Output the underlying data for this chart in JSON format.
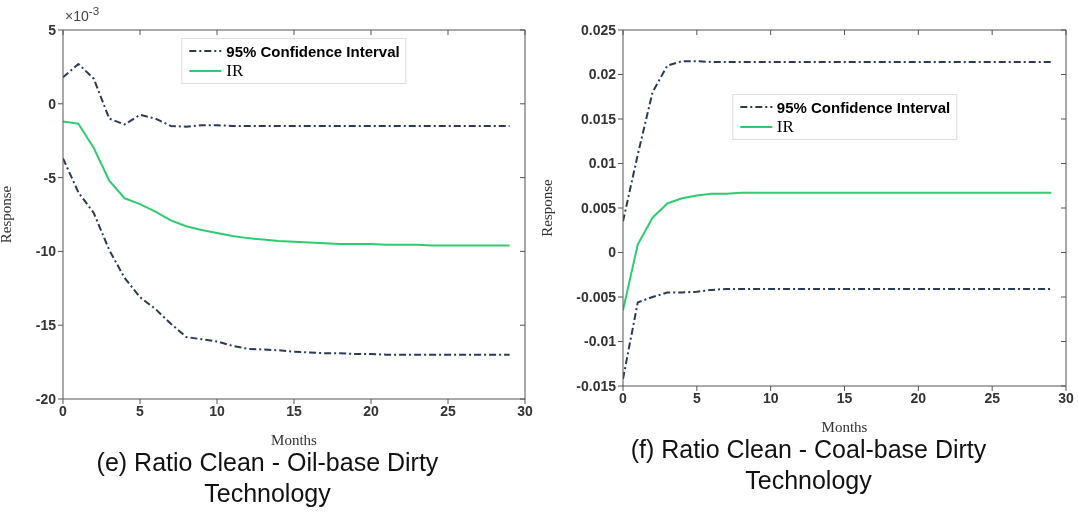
{
  "chart_data": [
    {
      "type": "line",
      "title": "(e) Ratio Clean - Oil-base Dirty Technology",
      "xlabel": "Months",
      "ylabel": "Response",
      "annotations": [
        "×10$^{-3}$"
      ],
      "x": [
        0,
        1,
        2,
        3,
        4,
        5,
        6,
        7,
        8,
        9,
        10,
        11,
        12,
        13,
        14,
        15,
        16,
        17,
        18,
        19,
        20,
        21,
        22,
        23,
        24,
        25,
        26,
        27,
        28,
        29
      ],
      "xlim": [
        0,
        30
      ],
      "xticks": [
        0,
        5,
        10,
        15,
        20,
        25,
        30
      ],
      "ylim": [
        -20,
        5
      ],
      "yticks": [
        -20,
        -15,
        -10,
        -5,
        0,
        5
      ],
      "grid": false,
      "legend": "top",
      "marker": "none",
      "series": [
        {
          "name": "95% Confidence Interval",
          "color": "#2b3a55",
          "line_style": "dashed",
          "values": [
            1.8,
            2.7,
            1.7,
            -1.0,
            -1.4,
            -0.75,
            -1.0,
            -1.5,
            -1.55,
            -1.45,
            -1.45,
            -1.5,
            -1.5,
            -1.5,
            -1.5,
            -1.5,
            -1.5,
            -1.5,
            -1.5,
            -1.5,
            -1.5,
            -1.5,
            -1.5,
            -1.5,
            -1.5,
            -1.5,
            -1.5,
            -1.5,
            -1.5,
            -1.5
          ]
        },
        {
          "name": "IR",
          "color": "#2ecc71",
          "line_style": "solid",
          "values": [
            -1.2,
            -1.35,
            -3.0,
            -5.2,
            -6.4,
            -6.8,
            -7.3,
            -7.9,
            -8.3,
            -8.55,
            -8.75,
            -8.95,
            -9.1,
            -9.2,
            -9.3,
            -9.35,
            -9.4,
            -9.45,
            -9.5,
            -9.5,
            -9.5,
            -9.55,
            -9.55,
            -9.55,
            -9.6,
            -9.6,
            -9.6,
            -9.6,
            -9.6,
            -9.6
          ]
        },
        {
          "color": "#2b3a55",
          "line_style": "dashed",
          "values": [
            -3.7,
            -6.0,
            -7.4,
            -9.9,
            -11.8,
            -13.1,
            -13.9,
            -14.9,
            -15.8,
            -15.95,
            -16.1,
            -16.4,
            -16.6,
            -16.65,
            -16.7,
            -16.8,
            -16.85,
            -16.9,
            -16.9,
            -16.95,
            -16.95,
            -17.0,
            -17.0,
            -17.0,
            -17.0,
            -17.0,
            -17.0,
            -17.0,
            -17.0,
            -17.0
          ]
        }
      ]
    },
    {
      "type": "line",
      "title": "(f) Ratio Clean - Coal-base Dirty Technology",
      "xlabel": "Months",
      "ylabel": "Response",
      "x": [
        0,
        1,
        2,
        3,
        4,
        5,
        6,
        7,
        8,
        9,
        10,
        11,
        12,
        13,
        14,
        15,
        16,
        17,
        18,
        19,
        20,
        21,
        22,
        23,
        24,
        25,
        26,
        27,
        28,
        29
      ],
      "xlim": [
        0,
        30
      ],
      "xticks": [
        0,
        5,
        10,
        15,
        20,
        25,
        30
      ],
      "ylim": [
        -0.015,
        0.025
      ],
      "yticks": [
        -0.015,
        -0.01,
        -0.005,
        0,
        0.005,
        0.01,
        0.015,
        0.02,
        0.025
      ],
      "grid": false,
      "legend": "center",
      "marker": "none",
      "series": [
        {
          "name": "95% Confidence Interval",
          "color": "#2b3a55",
          "line_style": "dashed",
          "values": [
            0.0035,
            0.011,
            0.018,
            0.021,
            0.0215,
            0.0215,
            0.0214,
            0.0214,
            0.0214,
            0.0214,
            0.0214,
            0.0214,
            0.0214,
            0.0214,
            0.0214,
            0.0214,
            0.0214,
            0.0214,
            0.0214,
            0.0214,
            0.0214,
            0.0214,
            0.0214,
            0.0214,
            0.0214,
            0.0214,
            0.0214,
            0.0214,
            0.0214,
            0.0214
          ]
        },
        {
          "name": "IR",
          "color": "#2ecc71",
          "line_style": "solid",
          "values": [
            -0.0065,
            0.0009,
            0.0039,
            0.0055,
            0.0061,
            0.0064,
            0.0066,
            0.0066,
            0.0067,
            0.0067,
            0.0067,
            0.0067,
            0.0067,
            0.0067,
            0.0067,
            0.0067,
            0.0067,
            0.0067,
            0.0067,
            0.0067,
            0.0067,
            0.0067,
            0.0067,
            0.0067,
            0.0067,
            0.0067,
            0.0067,
            0.0067,
            0.0067,
            0.0067
          ]
        },
        {
          "color": "#2b3a55",
          "line_style": "dashed",
          "values": [
            -0.0142,
            -0.0056,
            -0.005,
            -0.0045,
            -0.0045,
            -0.0044,
            -0.0042,
            -0.0041,
            -0.0041,
            -0.0041,
            -0.0041,
            -0.0041,
            -0.0041,
            -0.0041,
            -0.0041,
            -0.0041,
            -0.0041,
            -0.0041,
            -0.0041,
            -0.0041,
            -0.0041,
            -0.0041,
            -0.0041,
            -0.0041,
            -0.0041,
            -0.0041,
            -0.0041,
            -0.0041,
            -0.0041,
            -0.0041
          ]
        }
      ]
    }
  ]
}
